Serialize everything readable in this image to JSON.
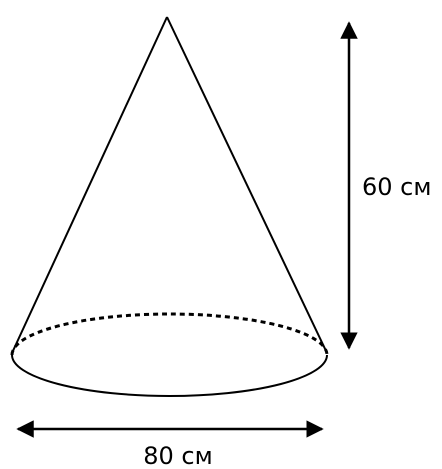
{
  "diagram": {
    "height_label": "60 см",
    "diameter_label": "80 см"
  },
  "colors": {
    "stroke": "#000000",
    "background": "#ffffff"
  }
}
